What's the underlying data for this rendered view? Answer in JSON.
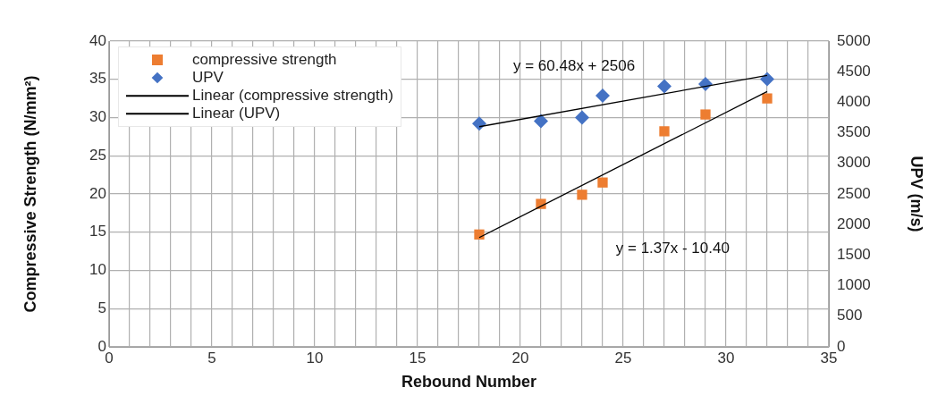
{
  "chart_data": {
    "type": "scatter",
    "xlabel": "Rebound Number",
    "ylabel": "Compressive Strength (N/mm²)",
    "y2label": "UPV (m/s)",
    "xlim": [
      0,
      35
    ],
    "xticks": [
      0,
      {
        "value": 1,
        "label": null
      },
      {
        "value": 2,
        "label": null
      },
      {
        "value": 3,
        "label": null
      },
      {
        "value": 4,
        "label": null
      },
      5,
      {
        "value": 6,
        "label": null
      },
      {
        "value": 7,
        "label": null
      },
      {
        "value": 8,
        "label": null
      },
      {
        "value": 9,
        "label": null
      },
      10,
      {
        "value": 11,
        "label": null
      },
      {
        "value": 12,
        "label": null
      },
      {
        "value": 13,
        "label": null
      },
      {
        "value": 14,
        "label": null
      },
      15,
      {
        "value": 16,
        "label": null
      },
      {
        "value": 17,
        "label": null
      },
      {
        "value": 18,
        "label": null
      },
      {
        "value": 19,
        "label": null
      },
      20,
      {
        "value": 21,
        "label": null
      },
      {
        "value": 22,
        "label": null
      },
      {
        "value": 23,
        "label": null
      },
      {
        "value": 24,
        "label": null
      },
      25,
      {
        "value": 26,
        "label": null
      },
      {
        "value": 27,
        "label": null
      },
      {
        "value": 28,
        "label": null
      },
      {
        "value": 29,
        "label": null
      },
      30,
      {
        "value": 31,
        "label": null
      },
      {
        "value": 32,
        "label": null
      },
      {
        "value": 33,
        "label": null
      },
      {
        "value": 34,
        "label": null
      },
      35
    ],
    "ylim": [
      0,
      40
    ],
    "yticks": [
      0,
      5,
      10,
      15,
      20,
      25,
      30,
      35,
      40
    ],
    "y2lim": [
      0,
      5000
    ],
    "y2ticks": [
      0,
      500,
      1000,
      1500,
      2000,
      2500,
      3000,
      3500,
      4000,
      4500,
      5000
    ],
    "grid": true,
    "legend": "top left",
    "series": [
      {
        "name": "compressive strength",
        "marker": "square",
        "color": "#ed7d31",
        "x": [
          18,
          21,
          23,
          24,
          27,
          29,
          32
        ],
        "values": [
          14.7,
          18.7,
          19.9,
          21.5,
          28.2,
          30.4,
          32.5
        ]
      },
      {
        "name": "UPV",
        "marker": "diamond",
        "color": "#4472c4",
        "axis": "y2",
        "x": [
          18,
          21,
          23,
          24,
          27,
          29,
          32
        ],
        "values": [
          3650,
          3690,
          3750,
          4110,
          4260,
          4300,
          4380
        ]
      },
      {
        "name": "Linear (compressive strength)",
        "type": "line",
        "marker": "none",
        "color": "#000000",
        "x": [
          18,
          32
        ],
        "values": [
          14.3,
          33.4
        ]
      },
      {
        "name": "Linear (UPV)",
        "type": "line",
        "marker": "none",
        "color": "#000000",
        "axis": "y2",
        "x": [
          18,
          32
        ],
        "values": [
          3600,
          4440
        ]
      }
    ],
    "annotations": [
      "y = 60.48x + 2506",
      "y = 1.37x - 10.40"
    ]
  }
}
